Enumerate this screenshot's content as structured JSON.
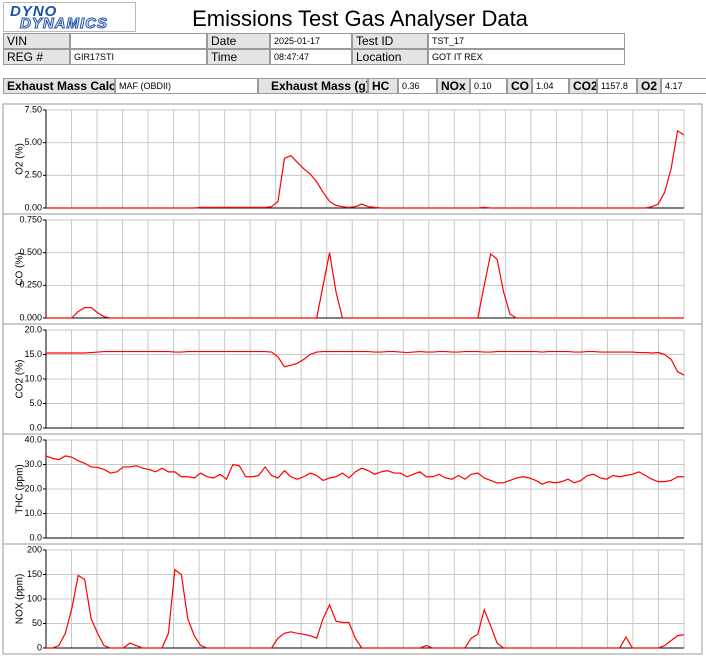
{
  "header": {
    "logo_top": "DYNO",
    "logo_bottom": "DYNAMICS",
    "title": "Emissions Test Gas Analyser Data",
    "info_rows": [
      [
        {
          "label": "VIN"
        },
        {
          "label": "Date",
          "value": "2025-01-17"
        },
        {
          "label": "Test ID",
          "value": "TST_17"
        }
      ],
      [
        {
          "label": "REG #",
          "value": "GIR17STI"
        },
        {
          "label": "Time",
          "value": "08:47:47"
        },
        {
          "label": "Location",
          "value": "GOT IT REX"
        }
      ]
    ],
    "mass_calc_label": "Exhaust Mass Calc",
    "mass_calc": "MAF (OBDII)",
    "mass_label": "Exhaust Mass (g) :",
    "masses": [
      {
        "label": "HC",
        "value": "0.36"
      },
      {
        "label": "NOx",
        "value": "0.10"
      },
      {
        "label": "CO",
        "value": "1.04"
      },
      {
        "label": "CO2",
        "value": "1157.8"
      },
      {
        "label": "O2",
        "value": "4.17"
      }
    ]
  },
  "chart_data": [
    {
      "type": "line",
      "ylabel": "O2 (%)",
      "color": "#ff0000",
      "grid": true,
      "ylim": [
        0,
        7.5
      ],
      "yticks": [
        {
          "value": 0,
          "label": "0.00"
        },
        {
          "value": 2.5,
          "label": "2.50"
        },
        {
          "value": 5,
          "label": "5.00"
        },
        {
          "value": 7.5,
          "label": "7.50"
        }
      ],
      "values": [
        0,
        0,
        0,
        0,
        0,
        0,
        0,
        0,
        0,
        0,
        0,
        0,
        0,
        0,
        0,
        0,
        0,
        0,
        0,
        0,
        0,
        0,
        0,
        0,
        0.05,
        0.05,
        0.05,
        0.05,
        0.05,
        0.05,
        0.05,
        0.05,
        0.05,
        0.05,
        0.05,
        0.1,
        0.5,
        3.8,
        4.0,
        3.5,
        3.0,
        2.6,
        2.0,
        1.2,
        0.5,
        0.2,
        0.1,
        0.05,
        0.1,
        0.3,
        0.1,
        0.05,
        0,
        0,
        0,
        0,
        0,
        0,
        0,
        0,
        0,
        0,
        0,
        0,
        0,
        0,
        0,
        0,
        0.05,
        0,
        0,
        0,
        0,
        0,
        0,
        0,
        0,
        0,
        0,
        0,
        0,
        0,
        0,
        0,
        0,
        0,
        0,
        0,
        0,
        0,
        0,
        0,
        0,
        0,
        0.1,
        0.3,
        1.2,
        3.0,
        5.9,
        5.6
      ]
    },
    {
      "type": "line",
      "ylabel": "CO (%)",
      "color": "#ff0000",
      "grid": true,
      "ylim": [
        0,
        0.75
      ],
      "yticks": [
        {
          "value": 0,
          "label": "0.000"
        },
        {
          "value": 0.25,
          "label": "0.250"
        },
        {
          "value": 0.5,
          "label": "0.500"
        },
        {
          "value": 0.75,
          "label": "0.750"
        }
      ],
      "values": [
        0,
        0,
        0,
        0,
        0,
        0.05,
        0.08,
        0.08,
        0.04,
        0.01,
        0,
        0,
        0,
        0,
        0,
        0,
        0,
        0,
        0,
        0,
        0,
        0,
        0,
        0,
        0,
        0,
        0,
        0,
        0,
        0,
        0,
        0,
        0,
        0,
        0,
        0,
        0,
        0,
        0,
        0,
        0,
        0,
        0,
        0.25,
        0.5,
        0.2,
        0,
        0,
        0,
        0,
        0,
        0,
        0,
        0,
        0,
        0,
        0,
        0,
        0,
        0,
        0,
        0,
        0,
        0,
        0,
        0,
        0,
        0,
        0.25,
        0.49,
        0.45,
        0.2,
        0.03,
        0,
        0,
        0,
        0,
        0,
        0,
        0,
        0,
        0,
        0,
        0,
        0,
        0,
        0,
        0,
        0,
        0,
        0,
        0,
        0,
        0,
        0,
        0,
        0,
        0,
        0,
        0
      ]
    },
    {
      "type": "line",
      "ylabel": "CO2 (%)",
      "color": "#ff0000",
      "grid": true,
      "ylim": [
        0,
        20
      ],
      "yticks": [
        {
          "value": 0,
          "label": "0.0"
        },
        {
          "value": 5,
          "label": "5.0"
        },
        {
          "value": 10,
          "label": "10.0"
        },
        {
          "value": 15,
          "label": "15.0"
        },
        {
          "value": 20,
          "label": "20.0"
        }
      ],
      "values": [
        15.3,
        15.3,
        15.3,
        15.3,
        15.3,
        15.3,
        15.3,
        15.4,
        15.5,
        15.6,
        15.6,
        15.6,
        15.6,
        15.6,
        15.6,
        15.6,
        15.6,
        15.6,
        15.6,
        15.6,
        15.5,
        15.5,
        15.6,
        15.6,
        15.6,
        15.6,
        15.6,
        15.6,
        15.6,
        15.6,
        15.6,
        15.6,
        15.6,
        15.6,
        15.6,
        15.5,
        14.5,
        12.5,
        12.8,
        13.2,
        14.0,
        15.0,
        15.5,
        15.6,
        15.6,
        15.6,
        15.6,
        15.6,
        15.6,
        15.6,
        15.6,
        15.5,
        15.5,
        15.6,
        15.6,
        15.5,
        15.4,
        15.5,
        15.6,
        15.5,
        15.5,
        15.6,
        15.6,
        15.5,
        15.5,
        15.6,
        15.6,
        15.6,
        15.5,
        15.5,
        15.6,
        15.6,
        15.6,
        15.6,
        15.6,
        15.6,
        15.6,
        15.5,
        15.6,
        15.6,
        15.6,
        15.6,
        15.5,
        15.5,
        15.6,
        15.6,
        15.5,
        15.5,
        15.5,
        15.5,
        15.5,
        15.5,
        15.4,
        15.4,
        15.3,
        15.4,
        15.0,
        14.0,
        11.5,
        10.8
      ]
    },
    {
      "type": "line",
      "ylabel": "THC (ppm)",
      "color": "#ff0000",
      "grid": true,
      "ylim": [
        0,
        40
      ],
      "yticks": [
        {
          "value": 0,
          "label": "0.0"
        },
        {
          "value": 10,
          "label": "10.0"
        },
        {
          "value": 20,
          "label": "20.0"
        },
        {
          "value": 30,
          "label": "30.0"
        },
        {
          "value": 40,
          "label": "40.0"
        }
      ],
      "values": [
        33.5,
        32.5,
        32,
        33.5,
        33,
        31.5,
        30.5,
        29,
        28.8,
        28,
        26.5,
        27,
        29,
        29,
        29.5,
        28.5,
        28,
        27,
        28.5,
        27,
        27,
        25,
        25,
        24.5,
        26.5,
        25,
        24.5,
        26,
        24,
        30,
        29.5,
        25,
        25,
        25.5,
        29,
        25.5,
        24.5,
        27.5,
        25,
        24,
        25,
        26.5,
        25.5,
        23.5,
        24.5,
        25,
        26.5,
        24.5,
        27,
        28.5,
        27.5,
        26,
        27,
        27.5,
        26.5,
        26.5,
        25,
        26,
        27,
        25,
        25,
        26,
        24.5,
        24,
        25.5,
        24,
        26,
        26.5,
        24.5,
        23.5,
        22.5,
        22.5,
        23.5,
        24.5,
        25,
        24.5,
        23.5,
        22,
        23,
        22.5,
        23,
        24,
        22.5,
        23.5,
        25.5,
        26,
        24.5,
        24,
        25.5,
        25,
        25.5,
        26,
        27,
        25.5,
        24,
        23,
        23,
        23.5,
        25,
        25
      ]
    },
    {
      "type": "line",
      "ylabel": "NOX (ppm)",
      "color": "#ff0000",
      "grid": true,
      "ylim": [
        0,
        200
      ],
      "yticks": [
        0,
        50,
        100,
        150,
        200
      ],
      "values": [
        0,
        0,
        5,
        30,
        80,
        148,
        140,
        60,
        30,
        5,
        0,
        0,
        0,
        10,
        5,
        0,
        0,
        0,
        0,
        30,
        160,
        150,
        60,
        25,
        5,
        0,
        0,
        0,
        0,
        0,
        0,
        0,
        0,
        0,
        0,
        0,
        20,
        30,
        33,
        30,
        28,
        25,
        20,
        60,
        88,
        55,
        52,
        52,
        20,
        0,
        0,
        0,
        0,
        0,
        0,
        0,
        0,
        0,
        0,
        5,
        0,
        0,
        0,
        0,
        0,
        0,
        20,
        28,
        78,
        45,
        10,
        0,
        0,
        0,
        0,
        0,
        0,
        0,
        0,
        0,
        0,
        0,
        0,
        0,
        0,
        0,
        0,
        0,
        0,
        0,
        22,
        0,
        0,
        0,
        0,
        0,
        5,
        15,
        25,
        27
      ]
    }
  ]
}
